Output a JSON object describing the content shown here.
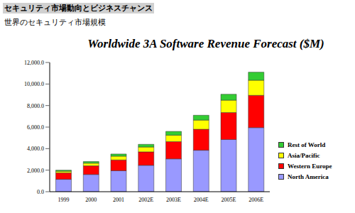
{
  "header": {
    "title": "セキュリティ市場動向とビジネスチャンス",
    "subtitle": "世界のセキュリティ市場規模"
  },
  "chart_data": {
    "type": "bar",
    "title": "Worldwide 3A Software Revenue Forecast ($M)",
    "categories": [
      "1999",
      "2000",
      "2001",
      "2002E",
      "2003E",
      "2004E",
      "2005E",
      "2006E"
    ],
    "series": [
      {
        "name": "North America",
        "color": "#9999ff",
        "values": [
          1150,
          1600,
          1950,
          2450,
          3050,
          3850,
          4850,
          5950
        ]
      },
      {
        "name": "Western Europe",
        "color": "#ff0000",
        "values": [
          600,
          800,
          1000,
          1250,
          1600,
          1950,
          2500,
          3000
        ]
      },
      {
        "name": "Asia/Pacific",
        "color": "#ffff00",
        "values": [
          150,
          250,
          350,
          450,
          600,
          850,
          1150,
          1400
        ]
      },
      {
        "name": "Rest of World",
        "color": "#33cc33",
        "values": [
          100,
          150,
          200,
          250,
          350,
          450,
          550,
          750
        ]
      }
    ],
    "ylim": [
      0,
      12000
    ],
    "yticks": [
      {
        "value": 0,
        "label": "0.0"
      },
      {
        "value": 2000,
        "label": "2,000.0"
      },
      {
        "value": 4000,
        "label": "4,000.0"
      },
      {
        "value": 6000,
        "label": "6,000.0"
      },
      {
        "value": 8000,
        "label": "8,000.0"
      },
      {
        "value": 10000,
        "label": "10,000.0"
      },
      {
        "value": 12000,
        "label": "12,000.0"
      }
    ],
    "stacked": true,
    "grid": false,
    "legend": "right"
  }
}
